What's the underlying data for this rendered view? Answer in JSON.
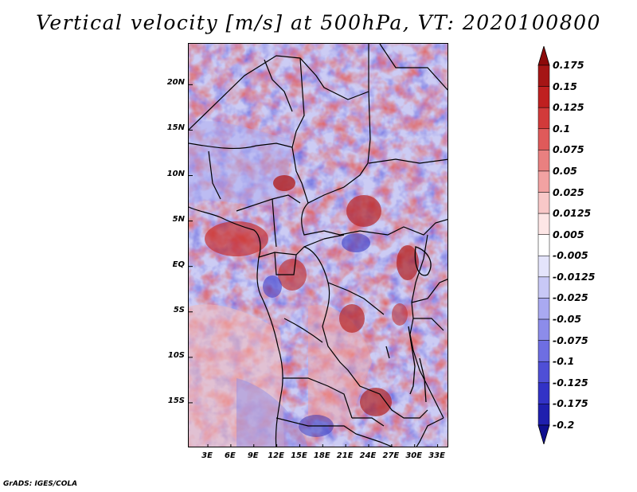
{
  "title": "Vertical velocity [m/s] at 500hPa, VT: 2020100800",
  "map": {
    "variable": "Vertical velocity",
    "level": "500hPa",
    "valid_time": "2020100800",
    "lat_labels": [
      "20N",
      "15N",
      "10N",
      "5N",
      "EQ",
      "5S",
      "10S",
      "15S"
    ],
    "lon_labels": [
      "3E",
      "6E",
      "9E",
      "12E",
      "15E",
      "18E",
      "21E",
      "24E",
      "27E",
      "30E",
      "33E"
    ],
    "lat_values": [
      20,
      15,
      10,
      5,
      0,
      -5,
      -10,
      -15
    ],
    "lon_values": [
      3,
      6,
      9,
      12,
      15,
      18,
      21,
      24,
      27,
      30,
      33
    ],
    "lat_range": [
      -20,
      24.5
    ],
    "lon_range": [
      0.5,
      34.5
    ]
  },
  "colorbar": {
    "levels": [
      "0.175",
      "0.15",
      "0.125",
      "0.1",
      "0.075",
      "0.05",
      "0.025",
      "0.0125",
      "0.005",
      "-0.005",
      "-0.0125",
      "-0.025",
      "-0.05",
      "-0.075",
      "-0.1",
      "-0.125",
      "-0.175",
      "-0.2"
    ],
    "colors": [
      "#8c0a0a",
      "#a51515",
      "#bf2020",
      "#d23a3a",
      "#df5a5a",
      "#e98080",
      "#f2a2a2",
      "#f8c8c8",
      "#fde6e6",
      "#ffffff",
      "#e4e4fb",
      "#c8c8f6",
      "#a9a9f1",
      "#8c8cea",
      "#6e6ee2",
      "#4f4fd6",
      "#3232c6",
      "#1f1fae",
      "#101090"
    ]
  },
  "credit": "GrADS: IGES/COLA"
}
